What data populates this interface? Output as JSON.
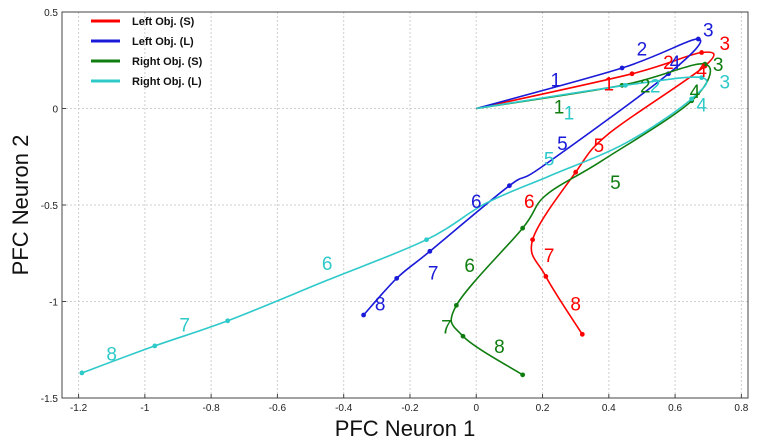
{
  "chart_data": {
    "type": "line",
    "xlabel": "PFC Neuron 1",
    "ylabel": "PFC Neuron 2",
    "xlim": [
      -1.25,
      0.82
    ],
    "ylim": [
      -1.5,
      0.5
    ],
    "xticks": [
      -1.2,
      -1,
      -0.8,
      -0.6,
      -0.4,
      -0.2,
      0,
      0.2,
      0.4,
      0.6,
      0.8
    ],
    "xtick_labels": [
      "-1.2",
      "-1",
      "-0.8",
      "-0.6",
      "-0.4",
      "-0.2",
      "0",
      "0.2",
      "0.4",
      "0.6",
      "0.8"
    ],
    "yticks": [
      -1.5,
      -1,
      -0.5,
      0,
      0.5
    ],
    "ytick_labels": [
      "-1.5",
      "-1",
      "-0.5",
      "0",
      "0.5"
    ],
    "grid": true,
    "legend_position": "top-left",
    "series": [
      {
        "name": "Left Obj. (S)",
        "color": "#ff0000",
        "points": [
          [
            0,
            0
          ],
          [
            0.47,
            0.18
          ],
          [
            0.68,
            0.29
          ],
          [
            0.69,
            0.22
          ],
          [
            0.4,
            -0.13
          ],
          [
            0.3,
            -0.33
          ],
          [
            0.17,
            -0.68
          ],
          [
            0.21,
            -0.87
          ],
          [
            0.32,
            -1.17
          ]
        ],
        "markers": [
          [
            0.47,
            0.18
          ],
          [
            0.68,
            0.29
          ],
          [
            0.69,
            0.22
          ],
          [
            0.3,
            -0.33
          ],
          [
            0.17,
            -0.68
          ],
          [
            0.21,
            -0.87
          ],
          [
            0.32,
            -1.17
          ]
        ],
        "step_labels": [
          {
            "text": "1",
            "x": 0.4,
            "y": 0.13
          },
          {
            "text": "2",
            "x": 0.58,
            "y": 0.24
          },
          {
            "text": "3",
            "x": 0.75,
            "y": 0.34
          },
          {
            "text": "4",
            "x": 0.68,
            "y": 0.2
          },
          {
            "text": "5",
            "x": 0.37,
            "y": -0.19
          },
          {
            "text": "6",
            "x": 0.16,
            "y": -0.48
          },
          {
            "text": "7",
            "x": 0.22,
            "y": -0.76
          },
          {
            "text": "8",
            "x": 0.3,
            "y": -1.01
          }
        ]
      },
      {
        "name": "Left Obj. (L)",
        "color": "#1a1ad9",
        "points": [
          [
            0,
            0
          ],
          [
            0.44,
            0.21
          ],
          [
            0.67,
            0.36
          ],
          [
            0.58,
            0.18
          ],
          [
            0.2,
            -0.3
          ],
          [
            0.1,
            -0.4
          ],
          [
            -0.14,
            -0.74
          ],
          [
            -0.24,
            -0.88
          ],
          [
            -0.34,
            -1.07
          ]
        ],
        "markers": [
          [
            0.44,
            0.21
          ],
          [
            0.67,
            0.36
          ],
          [
            0.58,
            0.18
          ],
          [
            0.1,
            -0.4
          ],
          [
            -0.14,
            -0.74
          ],
          [
            -0.24,
            -0.88
          ],
          [
            -0.34,
            -1.07
          ]
        ],
        "step_labels": [
          {
            "text": "1",
            "x": 0.24,
            "y": 0.15
          },
          {
            "text": "2",
            "x": 0.5,
            "y": 0.31
          },
          {
            "text": "3",
            "x": 0.7,
            "y": 0.41
          },
          {
            "text": "4",
            "x": 0.6,
            "y": 0.24
          },
          {
            "text": "5",
            "x": 0.26,
            "y": -0.18
          },
          {
            "text": "6",
            "x": 0.0,
            "y": -0.48
          },
          {
            "text": "7",
            "x": -0.13,
            "y": -0.85
          },
          {
            "text": "8",
            "x": -0.29,
            "y": -1.01
          }
        ]
      },
      {
        "name": "Right Obj. (S)",
        "color": "#0f7d0f",
        "points": [
          [
            0,
            0
          ],
          [
            0.44,
            0.12
          ],
          [
            0.69,
            0.23
          ],
          [
            0.65,
            0.04
          ],
          [
            0.38,
            -0.27
          ],
          [
            0.21,
            -0.45
          ],
          [
            0.14,
            -0.62
          ],
          [
            -0.06,
            -1.02
          ],
          [
            -0.04,
            -1.18
          ],
          [
            0.14,
            -1.38
          ]
        ],
        "markers": [
          [
            0.44,
            0.12
          ],
          [
            0.69,
            0.23
          ],
          [
            0.65,
            0.04
          ],
          [
            0.14,
            -0.62
          ],
          [
            -0.06,
            -1.02
          ],
          [
            -0.04,
            -1.18
          ],
          [
            0.14,
            -1.38
          ]
        ],
        "step_labels": [
          {
            "text": "1",
            "x": 0.25,
            "y": 0.01
          },
          {
            "text": "2",
            "x": 0.51,
            "y": 0.12
          },
          {
            "text": "3",
            "x": 0.73,
            "y": 0.23
          },
          {
            "text": "4",
            "x": 0.66,
            "y": 0.09
          },
          {
            "text": "5",
            "x": 0.42,
            "y": -0.38
          },
          {
            "text": "6",
            "x": -0.02,
            "y": -0.81
          },
          {
            "text": "7",
            "x": -0.09,
            "y": -1.13
          },
          {
            "text": "8",
            "x": 0.07,
            "y": -1.23
          }
        ]
      },
      {
        "name": "Right Obj. (L)",
        "color": "#2ec9c9",
        "points": [
          [
            0,
            0
          ],
          [
            0.45,
            0.12
          ],
          [
            0.68,
            0.16
          ],
          [
            0.65,
            0.05
          ],
          [
            0.45,
            -0.18
          ],
          [
            0.22,
            -0.35
          ],
          [
            0.03,
            -0.49
          ],
          [
            -0.15,
            -0.68
          ],
          [
            -0.45,
            -0.89
          ],
          [
            -0.75,
            -1.1
          ],
          [
            -0.97,
            -1.23
          ],
          [
            -1.19,
            -1.37
          ]
        ],
        "markers": [
          [
            0.45,
            0.12
          ],
          [
            0.68,
            0.16
          ],
          [
            0.65,
            0.05
          ],
          [
            -0.15,
            -0.68
          ],
          [
            -0.75,
            -1.1
          ],
          [
            -0.97,
            -1.23
          ],
          [
            -1.19,
            -1.37
          ]
        ],
        "step_labels": [
          {
            "text": "1",
            "x": 0.28,
            "y": -0.02
          },
          {
            "text": "2",
            "x": 0.54,
            "y": 0.12
          },
          {
            "text": "3",
            "x": 0.75,
            "y": 0.14
          },
          {
            "text": "4",
            "x": 0.68,
            "y": 0.02
          },
          {
            "text": "5",
            "x": 0.22,
            "y": -0.26
          },
          {
            "text": "6",
            "x": -0.45,
            "y": -0.8
          },
          {
            "text": "7",
            "x": -0.88,
            "y": -1.12
          },
          {
            "text": "8",
            "x": -1.1,
            "y": -1.27
          }
        ]
      }
    ]
  }
}
